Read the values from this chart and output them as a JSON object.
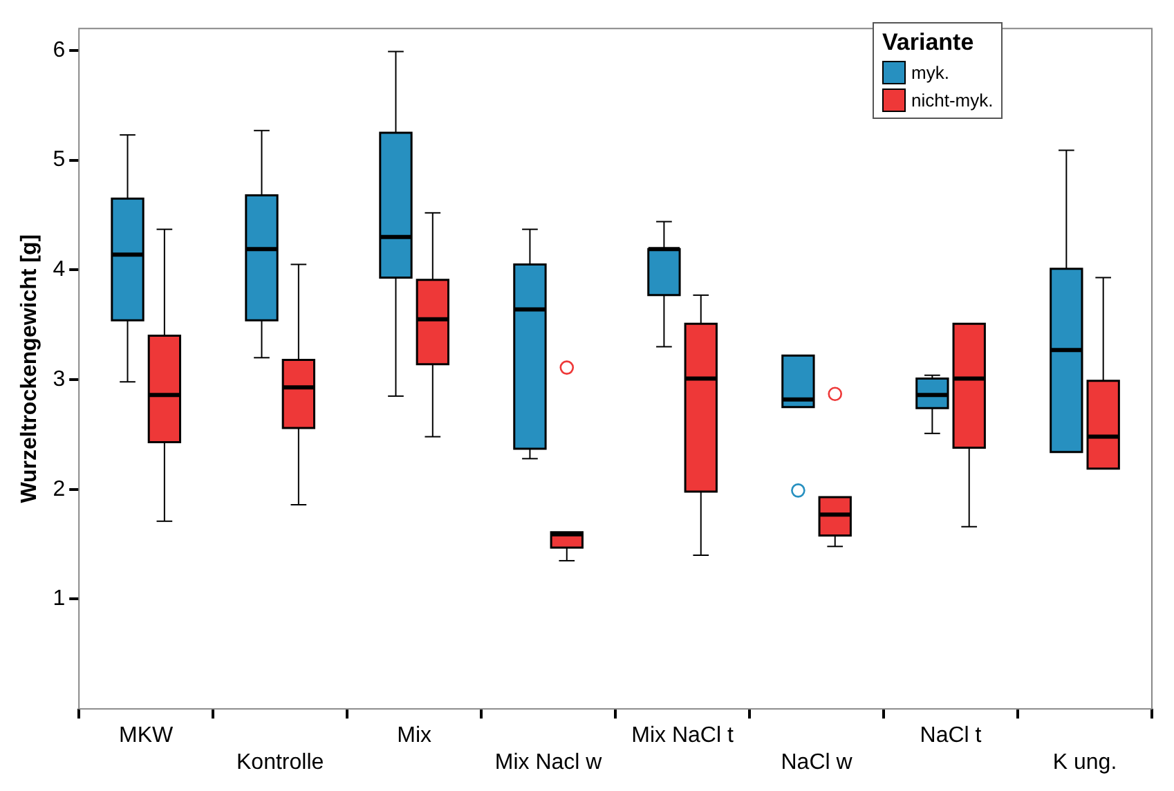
{
  "chart_data": {
    "type": "box",
    "ylabel": "Wurzeltrockengewicht [g]",
    "legend_title": "Variante",
    "legend": "top right",
    "grid": false,
    "categories": [
      "MKW",
      "Kontrolle",
      "Mix",
      "Mix Nacl w",
      "Mix NaCl t",
      "NaCl w",
      "NaCl t",
      "K ung."
    ],
    "ylim": [
      0,
      6.2
    ],
    "yticks": [
      1,
      2,
      3,
      4,
      5,
      6
    ],
    "series": [
      {
        "name": "myk.",
        "color": "#2790c0",
        "boxes": [
          {
            "low": 2.98,
            "q1": 3.54,
            "median": 4.14,
            "q3": 4.65,
            "high": 5.23
          },
          {
            "low": 3.2,
            "q1": 3.54,
            "median": 4.19,
            "q3": 4.68,
            "high": 5.27
          },
          {
            "low": 2.85,
            "q1": 3.93,
            "median": 4.3,
            "q3": 5.25,
            "high": 5.99
          },
          {
            "low": 2.28,
            "q1": 2.37,
            "median": 3.64,
            "q3": 4.05,
            "high": 4.37
          },
          {
            "low": 3.3,
            "q1": 3.77,
            "median": 4.19,
            "q3": 4.19,
            "high": 4.44
          },
          {
            "low": 2.75,
            "q1": 2.75,
            "median": 2.82,
            "q3": 3.22,
            "high": 3.22,
            "outliers": [
              1.99
            ]
          },
          {
            "low": 2.51,
            "q1": 2.74,
            "median": 2.86,
            "q3": 3.01,
            "high": 3.04
          },
          {
            "low": 2.34,
            "q1": 2.34,
            "median": 3.27,
            "q3": 4.01,
            "high": 5.09
          }
        ]
      },
      {
        "name": "nicht-myk.",
        "color": "#ee3838",
        "boxes": [
          {
            "low": 1.71,
            "q1": 2.43,
            "median": 2.86,
            "q3": 3.4,
            "high": 4.37
          },
          {
            "low": 1.86,
            "q1": 2.56,
            "median": 2.93,
            "q3": 3.18,
            "high": 4.05
          },
          {
            "low": 2.48,
            "q1": 3.14,
            "median": 3.55,
            "q3": 3.91,
            "high": 4.52
          },
          {
            "low": 1.35,
            "q1": 1.47,
            "median": 1.59,
            "q3": 1.61,
            "high": 1.61,
            "outliers": [
              3.11
            ]
          },
          {
            "low": 1.4,
            "q1": 1.98,
            "median": 3.01,
            "q3": 3.51,
            "high": 3.77
          },
          {
            "low": 1.48,
            "q1": 1.58,
            "median": 1.77,
            "q3": 1.93,
            "high": 1.93,
            "outliers": [
              2.87
            ]
          },
          {
            "low": 1.66,
            "q1": 2.38,
            "median": 3.01,
            "q3": 3.51,
            "high": 3.51
          },
          {
            "low": 2.19,
            "q1": 2.19,
            "median": 2.48,
            "q3": 2.99,
            "high": 3.93
          }
        ]
      }
    ]
  }
}
